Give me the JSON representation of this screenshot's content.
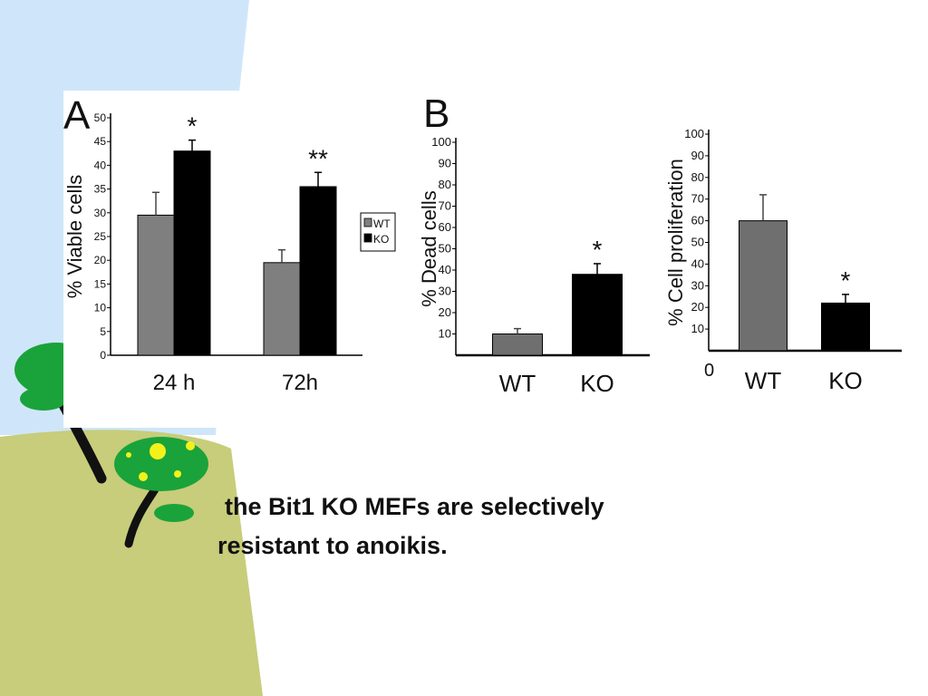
{
  "slide": {
    "caption_line1": "the Bit1 KO MEFs are selectively",
    "caption_line2": "resistant to anoikis.",
    "colors": {
      "sky": "#cfe6fa",
      "ground": "#c7cd7a",
      "leaf": "#1aa33a",
      "trunk": "#111111",
      "fruit": "#f2f21a"
    }
  },
  "chart_data": [
    {
      "panel_label": "A",
      "type": "bar",
      "categories": [
        "24 h",
        "72h"
      ],
      "series": [
        {
          "name": "WT",
          "color": "#7f7f7f",
          "values": [
            29.5,
            19.5
          ],
          "errors": [
            4.8,
            2.7
          ]
        },
        {
          "name": "KO",
          "color": "#000000",
          "values": [
            43,
            35.5
          ],
          "errors": [
            2.3,
            3
          ]
        }
      ],
      "significance": [
        "*",
        "**"
      ],
      "ylabel": "% Viable cells",
      "ylim": [
        0,
        50
      ],
      "yticks": [
        0,
        5,
        10,
        15,
        20,
        25,
        30,
        35,
        40,
        45,
        50
      ],
      "legend": "right",
      "grid": false
    },
    {
      "panel_label": "B",
      "type": "bar",
      "categories": [
        "WT",
        "KO"
      ],
      "values": [
        10,
        38
      ],
      "errors": [
        2.5,
        5
      ],
      "colors": [
        "#6f6f6f",
        "#000000"
      ],
      "significance": [
        "",
        "*"
      ],
      "ylabel": "% Dead cells",
      "ylim": [
        0,
        100
      ],
      "yticks": [
        10,
        20,
        30,
        40,
        50,
        60,
        70,
        80,
        90,
        100
      ],
      "grid": false
    },
    {
      "panel_label": "",
      "type": "bar",
      "categories": [
        "WT",
        "KO"
      ],
      "values": [
        60,
        22
      ],
      "errors": [
        12,
        4
      ],
      "colors": [
        "#6f6f6f",
        "#000000"
      ],
      "significance": [
        "",
        "*"
      ],
      "ylabel": "% Cell proliferation",
      "ylim": [
        0,
        100
      ],
      "yticks": [
        10,
        20,
        30,
        40,
        50,
        60,
        70,
        80,
        90,
        100
      ],
      "origin_label": "0",
      "grid": false
    }
  ]
}
